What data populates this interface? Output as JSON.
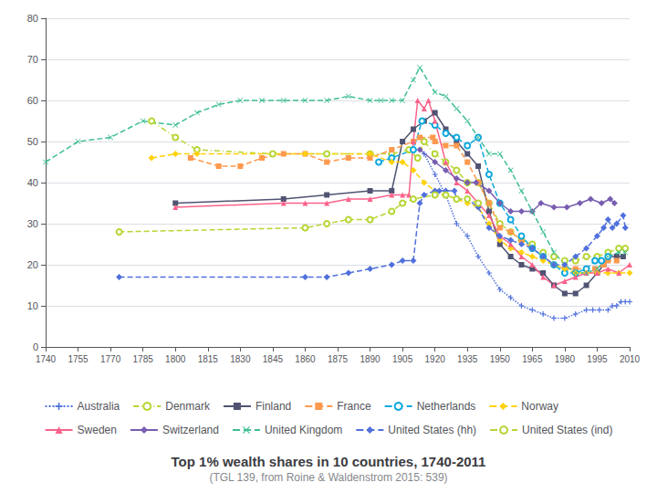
{
  "chart_data": {
    "type": "line",
    "title": "Top 1% wealth shares in 10 countries, 1740-2011",
    "subtitle": "(TGL 139, from Roine & Waldenstrom 2015: 539)",
    "xlim": [
      1740,
      2010
    ],
    "ylim": [
      0,
      80
    ],
    "xticks": [
      1740,
      1755,
      1770,
      1785,
      1800,
      1815,
      1830,
      1845,
      1860,
      1875,
      1890,
      1905,
      1920,
      1935,
      1950,
      1965,
      1980,
      1995,
      2010
    ],
    "yticks": [
      0,
      10,
      20,
      30,
      40,
      50,
      60,
      70,
      80
    ],
    "grid": true,
    "legend": "bottom",
    "series": [
      {
        "name": "Australia",
        "marker": "plus",
        "line_style": "dotted",
        "x": [
          1915,
          1920,
          1925,
          1930,
          1935,
          1940,
          1945,
          1950,
          1955,
          1960,
          1965,
          1970,
          1975,
          1980,
          1985,
          1990,
          1993,
          1996,
          2000,
          2002,
          2004,
          2006,
          2008,
          2010
        ],
        "values": [
          47,
          42,
          37,
          30,
          27,
          22,
          18,
          14,
          12,
          10,
          9,
          8,
          7,
          7,
          8,
          9,
          9,
          9,
          9,
          10,
          10,
          11,
          11,
          11
        ]
      },
      {
        "name": "Denmark",
        "marker": "open_circle",
        "line_style": "dashdot",
        "x": [
          1789,
          1800,
          1810,
          1845,
          1870,
          1890,
          1900,
          1908,
          1912,
          1915,
          1920,
          1925,
          1930,
          1935,
          1940,
          1945,
          1950,
          1955,
          1960,
          1965,
          1970,
          1975,
          1980,
          1985,
          1990,
          1995,
          2000,
          2005,
          2008
        ],
        "values": [
          55,
          51,
          48,
          47,
          47,
          47,
          47,
          48,
          46,
          50,
          47,
          45,
          43,
          40,
          40,
          35,
          30,
          28,
          26,
          25,
          23,
          22,
          21,
          21,
          22,
          22,
          23,
          24,
          24
        ]
      },
      {
        "name": "Finland",
        "marker": "square",
        "line_style": "solid",
        "x": [
          1800,
          1850,
          1870,
          1890,
          1900,
          1905,
          1910,
          1915,
          1920,
          1925,
          1930,
          1935,
          1940,
          1945,
          1950,
          1955,
          1960,
          1965,
          1970,
          1975,
          1980,
          1985,
          1990,
          1995,
          1998,
          2000,
          2004,
          2007
        ],
        "values": [
          35,
          36,
          37,
          38,
          38,
          50,
          53,
          55,
          57,
          53,
          50,
          47,
          44,
          33,
          25,
          22,
          20,
          19,
          18,
          15,
          13,
          13,
          15,
          18,
          20,
          22,
          22,
          22
        ]
      },
      {
        "name": "France",
        "marker": "square",
        "line_style": "dashed",
        "x": [
          1807,
          1820,
          1830,
          1840,
          1850,
          1860,
          1870,
          1880,
          1890,
          1900,
          1910,
          1913,
          1919,
          1920,
          1925,
          1930,
          1935,
          1940,
          1945,
          1950,
          1955,
          1960,
          1965,
          1970,
          1975,
          1980,
          1985,
          1990,
          1994,
          1998,
          2000,
          2004
        ],
        "values": [
          46,
          44,
          44,
          46,
          47,
          47,
          45,
          46,
          46,
          48,
          50,
          51,
          51,
          50,
          49,
          49,
          45,
          40,
          35,
          29,
          28,
          26,
          24,
          22,
          20,
          19,
          19,
          19,
          19,
          20,
          21,
          21
        ]
      },
      {
        "name": "Netherlands",
        "marker": "open_circle",
        "line_style": "dashed",
        "x": [
          1894,
          1900,
          1910,
          1914,
          1920,
          1925,
          1930,
          1935,
          1940,
          1945,
          1950,
          1955,
          1960,
          1965,
          1970,
          1975,
          1980,
          1985,
          1990,
          1994,
          1997,
          2000
        ],
        "values": [
          45,
          46,
          48,
          55,
          54,
          52,
          51,
          49,
          51,
          42,
          35,
          31,
          27,
          24,
          22,
          20,
          18,
          18,
          19,
          21,
          21,
          22
        ]
      },
      {
        "name": "Norway",
        "marker": "diamond",
        "line_style": "dashed",
        "x": [
          1789,
          1800,
          1810,
          1860,
          1890,
          1900,
          1905,
          1910,
          1915,
          1920,
          1925,
          1930,
          1935,
          1940,
          1945,
          1950,
          1955,
          1960,
          1965,
          1970,
          1975,
          1980,
          1985,
          1990,
          1995,
          2000,
          2005,
          2010
        ],
        "values": [
          46,
          47,
          47,
          47,
          47,
          45,
          45,
          43,
          40,
          38,
          37,
          36,
          35,
          34,
          30,
          26,
          24,
          23,
          22,
          21,
          20,
          19,
          18,
          18,
          18,
          18,
          18,
          18
        ]
      },
      {
        "name": "Sweden",
        "marker": "triangle",
        "line_style": "solid",
        "x": [
          1800,
          1850,
          1860,
          1870,
          1880,
          1890,
          1900,
          1905,
          1908,
          1910,
          1912,
          1915,
          1917,
          1920,
          1925,
          1930,
          1935,
          1940,
          1945,
          1950,
          1955,
          1960,
          1965,
          1970,
          1975,
          1980,
          1985,
          1990,
          1995,
          2000,
          2005,
          2010
        ],
        "values": [
          34,
          35,
          35,
          35,
          36,
          36,
          37,
          37,
          37,
          50,
          60,
          58,
          60,
          55,
          45,
          40,
          38,
          35,
          32,
          27,
          25,
          22,
          20,
          17,
          15,
          16,
          17,
          18,
          18,
          19,
          18,
          20
        ]
      },
      {
        "name": "Switzerland",
        "marker": "diamond",
        "line_style": "solid",
        "x": [
          1913,
          1920,
          1925,
          1930,
          1935,
          1939,
          1945,
          1950,
          1955,
          1960,
          1965,
          1969,
          1975,
          1981,
          1987,
          1992,
          1997,
          2001,
          2003
        ],
        "values": [
          48,
          45,
          43,
          41,
          40,
          40,
          38,
          35,
          33,
          33,
          33,
          35,
          34,
          34,
          35,
          36,
          35,
          36,
          35
        ]
      },
      {
        "name": "United Kingdom",
        "marker": "x",
        "line_style": "dashed",
        "x": [
          1740,
          1755,
          1770,
          1785,
          1800,
          1810,
          1820,
          1830,
          1840,
          1850,
          1860,
          1870,
          1880,
          1890,
          1895,
          1900,
          1905,
          1910,
          1913,
          1920,
          1925,
          1930,
          1935,
          1940,
          1945,
          1950,
          1955,
          1960,
          1965,
          1970,
          1975,
          1980,
          1985,
          1990,
          1995,
          2000,
          2005,
          2008
        ],
        "values": [
          45,
          50,
          51,
          55,
          54,
          57,
          59,
          60,
          60,
          60,
          60,
          60,
          61,
          60,
          60,
          60,
          60,
          65,
          68,
          62,
          61,
          58,
          55,
          51,
          47,
          47,
          43,
          38,
          33,
          28,
          23,
          20,
          18,
          18,
          19,
          22,
          23,
          23
        ]
      },
      {
        "name": "United States (hh)",
        "marker": "diamond",
        "line_style": "dashed",
        "x": [
          1774,
          1860,
          1870,
          1880,
          1890,
          1900,
          1905,
          1910,
          1913,
          1915,
          1920,
          1922,
          1925,
          1929,
          1930,
          1935,
          1940,
          1945,
          1950,
          1955,
          1960,
          1965,
          1970,
          1975,
          1980,
          1985,
          1990,
          1995,
          1998,
          2000,
          2002,
          2004,
          2007,
          2008
        ],
        "values": [
          17,
          17,
          17,
          18,
          19,
          20,
          21,
          21,
          35,
          37,
          38,
          38,
          38,
          38,
          36,
          36,
          34,
          29,
          27,
          26,
          25,
          24,
          22,
          20,
          20,
          22,
          24,
          27,
          29,
          31,
          29,
          30,
          32,
          29
        ]
      },
      {
        "name": "United States (ind)",
        "marker": "open_circle",
        "line_style": "dashed",
        "x": [
          1774,
          1860,
          1870,
          1880,
          1890,
          1900,
          1905,
          1910,
          1920,
          1925,
          1930,
          1935,
          1940
        ],
        "values": [
          28,
          29,
          30,
          31,
          31,
          33,
          35,
          36,
          37,
          37,
          36,
          36,
          35
        ]
      }
    ]
  }
}
